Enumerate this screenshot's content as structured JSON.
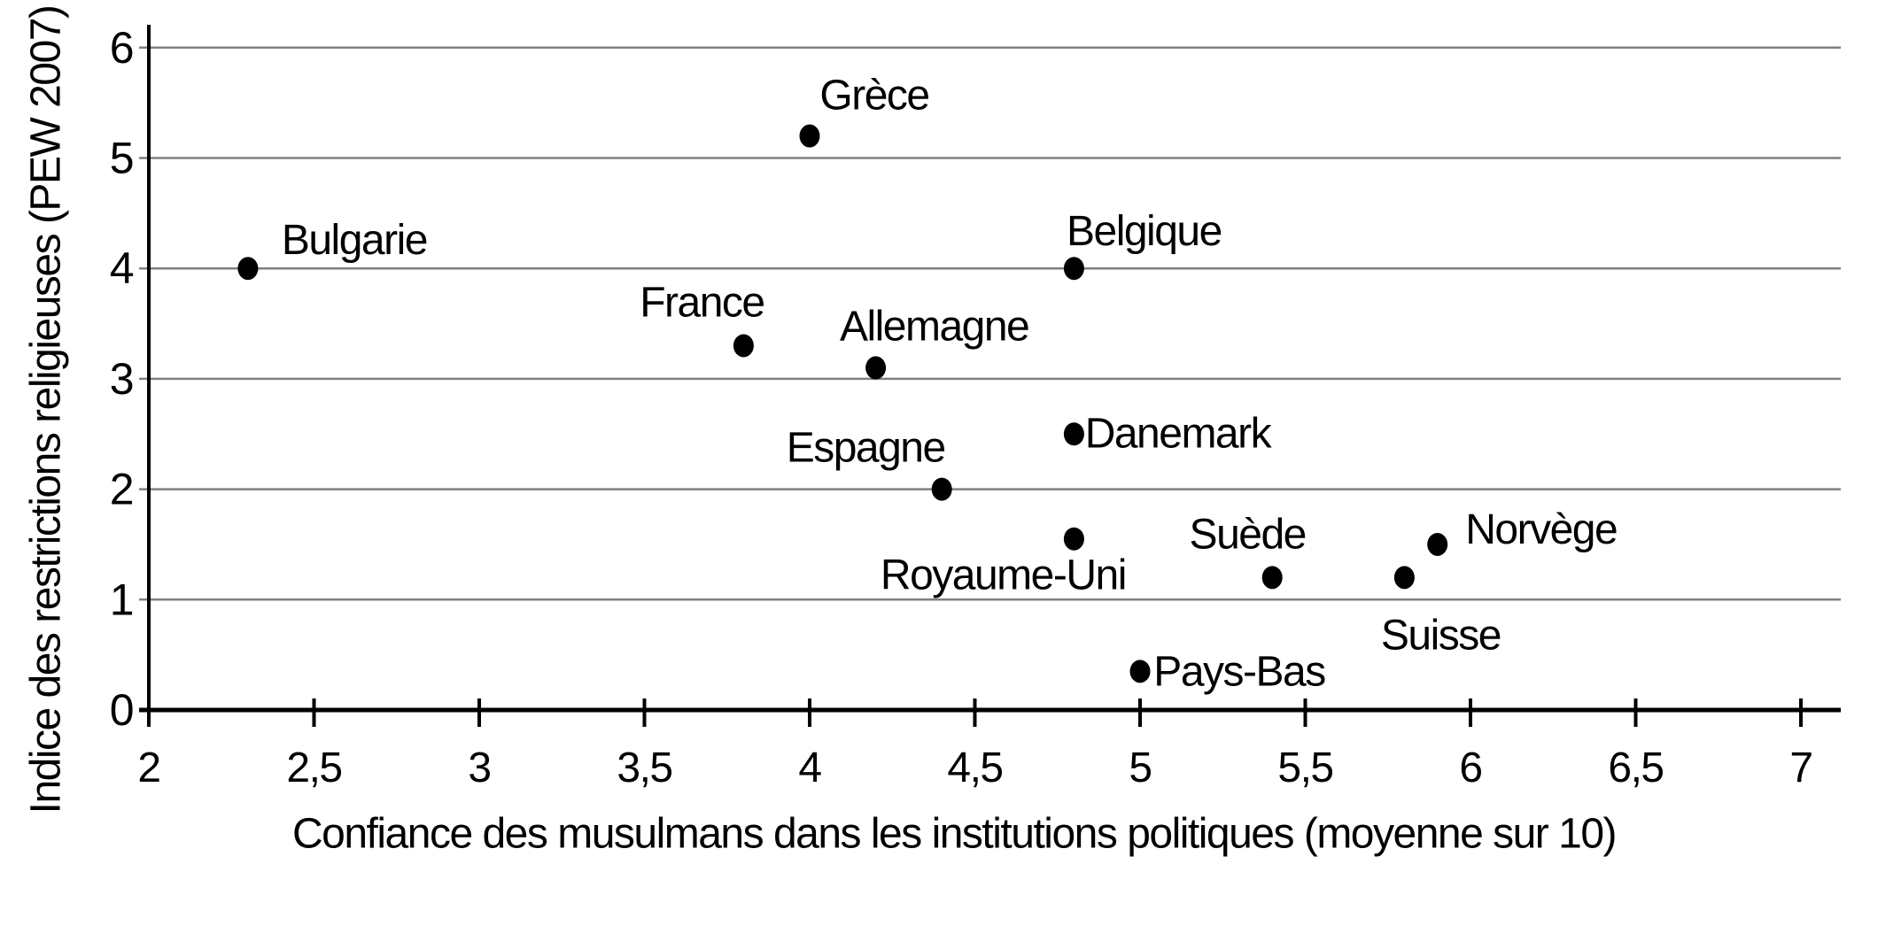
{
  "chart_data": {
    "type": "scatter",
    "title": "",
    "xlabel": "Confiance des musulmans dans les institutions politiques (moyenne sur 10)",
    "ylabel": "Indice des restrictions religieuses (PEW 2007)",
    "xlim": [
      2,
      7
    ],
    "ylim": [
      0,
      6
    ],
    "grid": "horizontal-gridlines-only",
    "legend": "none",
    "marker": "filled-black-circle",
    "x_ticks": [
      {
        "value": 2,
        "label": "2"
      },
      {
        "value": 2.5,
        "label": "2,5"
      },
      {
        "value": 3,
        "label": "3"
      },
      {
        "value": 3.5,
        "label": "3,5"
      },
      {
        "value": 4,
        "label": "4"
      },
      {
        "value": 4.5,
        "label": "4,5"
      },
      {
        "value": 5,
        "label": "5"
      },
      {
        "value": 5.5,
        "label": "5,5"
      },
      {
        "value": 6,
        "label": "6"
      },
      {
        "value": 6.5,
        "label": "6,5"
      },
      {
        "value": 7,
        "label": "7"
      }
    ],
    "y_ticks": [
      {
        "value": 0,
        "label": "0"
      },
      {
        "value": 1,
        "label": "1"
      },
      {
        "value": 2,
        "label": "2"
      },
      {
        "value": 3,
        "label": "3"
      },
      {
        "value": 4,
        "label": "4"
      },
      {
        "value": 5,
        "label": "5"
      },
      {
        "value": 6,
        "label": "6"
      }
    ],
    "points": [
      {
        "label": "Bulgarie",
        "x": 2.3,
        "y": 4.0,
        "label_offset": [
          120,
          -32
        ]
      },
      {
        "label": "Grèce",
        "x": 4.0,
        "y": 5.2,
        "label_offset": [
          73,
          -46
        ]
      },
      {
        "label": "France",
        "x": 3.8,
        "y": 3.3,
        "label_offset": [
          -47,
          -49
        ]
      },
      {
        "label": "Allemagne",
        "x": 4.2,
        "y": 3.1,
        "label_offset": [
          66,
          -47
        ]
      },
      {
        "label": "Belgique",
        "x": 4.8,
        "y": 4.0,
        "label_offset": [
          79,
          -42
        ]
      },
      {
        "label": "Espagne",
        "x": 4.4,
        "y": 2.0,
        "label_offset": [
          -86,
          -47
        ]
      },
      {
        "label": "Danemark",
        "x": 4.8,
        "y": 2.5,
        "label_offset": [
          117,
          -1
        ]
      },
      {
        "label": "Royaume-Uni",
        "x": 4.8,
        "y": 1.55,
        "label_offset": [
          -80,
          41
        ]
      },
      {
        "label": "Pays-Bas",
        "x": 5.0,
        "y": 0.35,
        "label_offset": [
          112,
          0
        ]
      },
      {
        "label": "Suède",
        "x": 5.4,
        "y": 1.2,
        "label_offset": [
          -28,
          -49
        ]
      },
      {
        "label": "Suisse",
        "x": 5.8,
        "y": 1.2,
        "label_offset": [
          41,
          65
        ]
      },
      {
        "label": "Norvège",
        "x": 5.9,
        "y": 1.5,
        "label_offset": [
          117,
          -17
        ]
      }
    ]
  },
  "colors": {
    "background": "#ffffff",
    "dot": "#000000",
    "gridline": "#808080",
    "axis": "#000000",
    "text": "#000000"
  }
}
